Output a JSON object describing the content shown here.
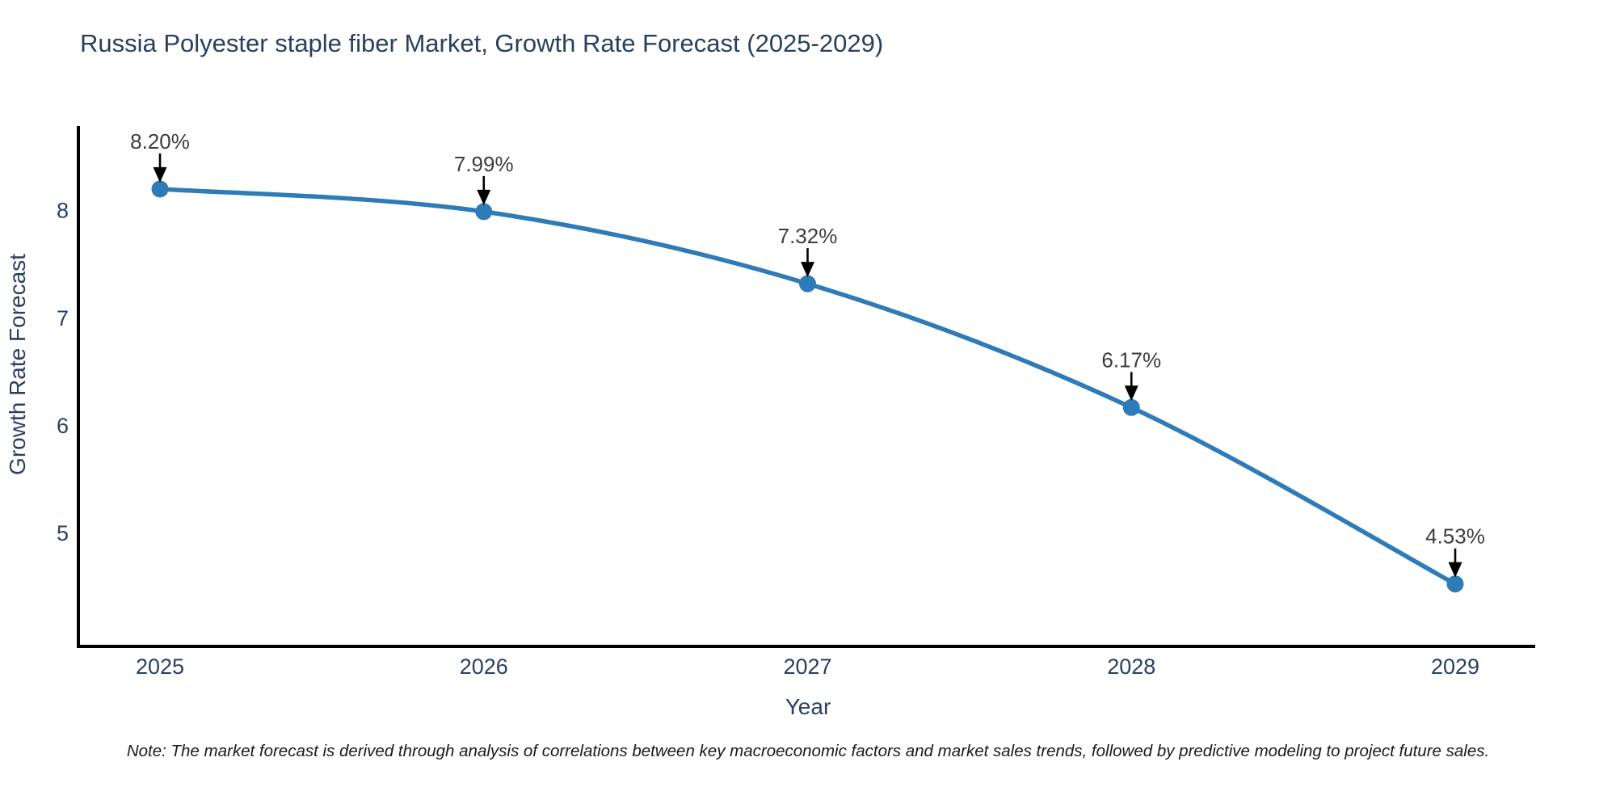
{
  "chart_data": {
    "type": "line",
    "title": "Russia Polyester staple fiber Market, Growth Rate Forecast (2025-2029)",
    "xlabel": "Year",
    "ylabel": "Growth Rate Forecast",
    "categories": [
      "2025",
      "2026",
      "2027",
      "2028",
      "2029"
    ],
    "values": [
      8.2,
      7.99,
      7.32,
      6.17,
      4.53
    ],
    "point_labels": [
      "8.20%",
      "7.99%",
      "7.32%",
      "6.17%",
      "4.53%"
    ],
    "yticks": [
      8,
      7,
      6,
      5
    ],
    "ylim": [
      3.95,
      8.77
    ],
    "grid": false,
    "legend_position": "none",
    "line_shape": "spline",
    "colors": {
      "line": "#2e7bb8",
      "marker": "#2e7bb8",
      "axis": "#000000",
      "arrow": "#000000",
      "title_text": "#2a3f5f",
      "tick_text": "#2a3f5f",
      "annotation_text": "#3d3d3d"
    }
  },
  "note": {
    "text": "Note: The market forecast is derived through analysis of correlations between key macroeconomic factors and market sales trends, followed by predictive modeling to project future sales."
  }
}
